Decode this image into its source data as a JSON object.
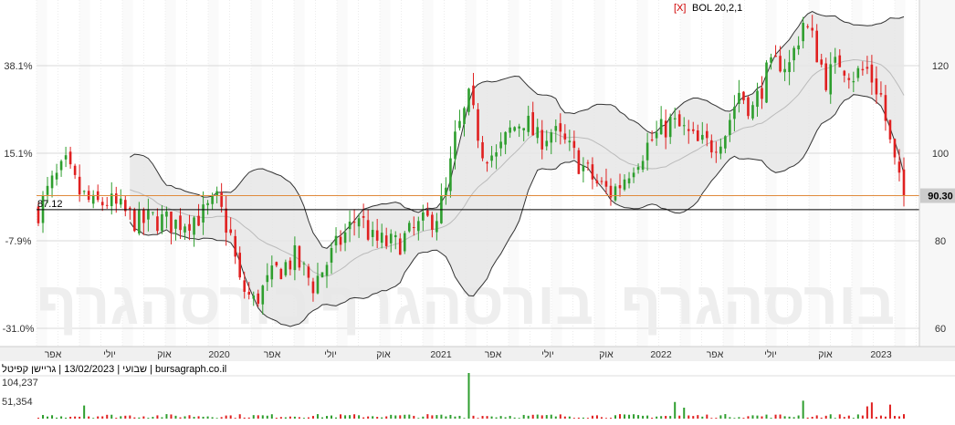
{
  "indicator": {
    "marker": "[X]",
    "label": "BOL 20,2,1",
    "marker_color": "#d00000"
  },
  "watermark": {
    "text": "בורסהגרף",
    "subtext": "הבורסה על הגרף"
  },
  "footer_info": "שבועי | 13/02/2023 | גריישן קפיטל | bursagraph.co.il",
  "colors": {
    "up": "#2e9e2e",
    "down": "#e02020",
    "band_fill": "#e6e6e6",
    "band_line": "#333333",
    "mid_line": "#bbbbbb",
    "orange_line": "#e08a3c",
    "black_line": "#000000",
    "price_box": "#cccccc"
  },
  "chart_data": [
    {
      "type": "candlestick",
      "title": "",
      "x_ticks": [
        "אפר",
        "יולי",
        "אוק",
        "2020",
        "אפר",
        "יולי",
        "אוק",
        "2021",
        "אפר",
        "יולי",
        "אוק",
        "2022",
        "אפר",
        "יולי",
        "אוק",
        "2023"
      ],
      "y_right_ticks": [
        60,
        80,
        100,
        120
      ],
      "y_left_ticks": [
        "38.1%",
        "15.1%",
        "-7.9%",
        "-31.0%"
      ],
      "ylim": [
        56,
        134
      ],
      "base_label": "87.12",
      "base_value": 87.12,
      "last_price_label": "90.30",
      "last_price": 90.3,
      "grid": true,
      "legend": "top-right",
      "waypoints": [
        [
          0,
          87
        ],
        [
          3,
          93
        ],
        [
          6,
          97
        ],
        [
          9,
          91
        ],
        [
          12,
          88
        ],
        [
          15,
          89
        ],
        [
          18,
          87
        ],
        [
          22,
          84
        ],
        [
          25,
          85
        ],
        [
          30,
          84
        ],
        [
          36,
          86
        ],
        [
          39,
          89
        ],
        [
          42,
          81
        ],
        [
          44,
          70
        ],
        [
          47,
          66
        ],
        [
          52,
          73
        ],
        [
          56,
          76
        ],
        [
          60,
          70
        ],
        [
          63,
          75
        ],
        [
          66,
          80
        ],
        [
          70,
          86
        ],
        [
          73,
          80
        ],
        [
          78,
          79
        ],
        [
          83,
          83
        ],
        [
          87,
          86
        ],
        [
          89,
          91
        ],
        [
          91,
          103
        ],
        [
          94,
          112
        ],
        [
          97,
          101
        ],
        [
          100,
          99
        ],
        [
          103,
          105
        ],
        [
          106,
          108
        ],
        [
          109,
          103
        ],
        [
          112,
          105
        ],
        [
          115,
          102
        ],
        [
          118,
          98
        ],
        [
          122,
          93
        ],
        [
          125,
          91
        ],
        [
          127,
          93
        ],
        [
          130,
          98
        ],
        [
          134,
          103
        ],
        [
          138,
          107
        ],
        [
          141,
          105
        ],
        [
          144,
          102
        ],
        [
          147,
          102
        ],
        [
          150,
          105
        ],
        [
          153,
          114
        ],
        [
          156,
          110
        ],
        [
          159,
          118
        ],
        [
          162,
          121
        ],
        [
          164,
          120
        ],
        [
          167,
          130
        ],
        [
          169,
          126
        ],
        [
          172,
          117
        ],
        [
          175,
          121
        ],
        [
          178,
          118
        ],
        [
          181,
          119
        ],
        [
          184,
          113
        ],
        [
          186,
          102
        ],
        [
          188,
          93
        ],
        [
          189,
          90.3
        ]
      ],
      "volume_ticks": [
        "104,237",
        "51,354"
      ],
      "volume_max": 104237,
      "volume_spikes": [
        [
          10,
          30000
        ],
        [
          94,
          104237
        ],
        [
          139,
          38000
        ],
        [
          141,
          25000
        ],
        [
          167,
          41000
        ],
        [
          181,
          28000
        ],
        [
          182,
          37000
        ],
        [
          186,
          32000
        ]
      ]
    }
  ]
}
